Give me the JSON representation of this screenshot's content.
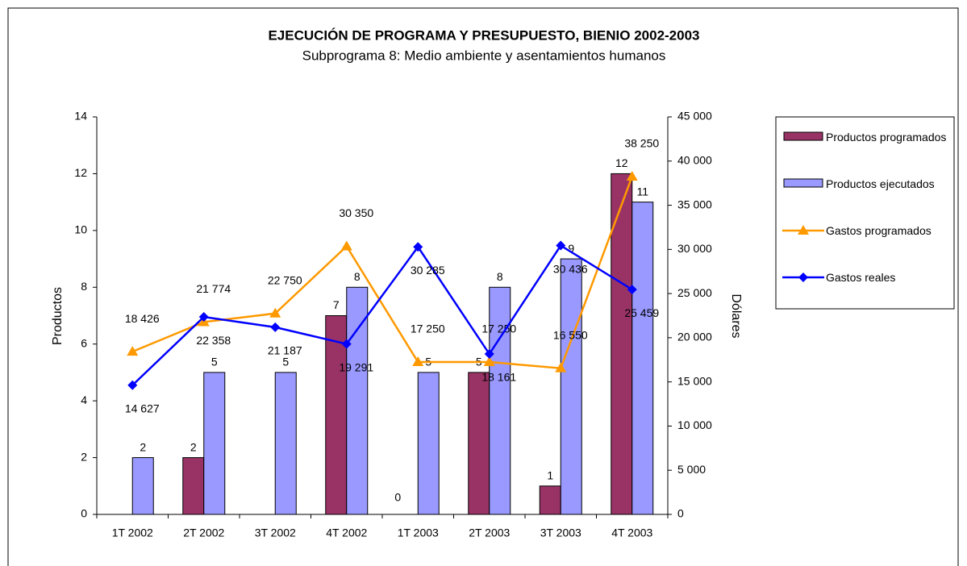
{
  "chart_data": {
    "type": "bar-line",
    "title": "EJECUCIÓN DE PROGRAMA Y PRESUPUESTO, BIENIO 2002-2003",
    "subtitle": "Subprograma 8: Medio ambiente y asentamientos humanos",
    "ylabel": "Productos",
    "y2label": "Dólares",
    "categories": [
      "1T 2002",
      "2T 2002",
      "3T 2002",
      "4T 2002",
      "1T 2003",
      "2T 2003",
      "3T 2003",
      "4T 2003"
    ],
    "series": [
      {
        "name": "Productos programados",
        "color": "#993366",
        "kind": "bar",
        "values": [
          null,
          2,
          null,
          7,
          0,
          5,
          1,
          12
        ]
      },
      {
        "name": "Productos ejecutados",
        "color": "#9999FF",
        "kind": "bar",
        "values": [
          2,
          5,
          5,
          8,
          5,
          8,
          9,
          11
        ]
      },
      {
        "name": "Gastos programados",
        "color": "#FF9900",
        "kind": "line",
        "marker": "triangle",
        "axis": "y2",
        "values": [
          18426,
          21774,
          22750,
          30350,
          17250,
          17250,
          16550,
          38250
        ],
        "value_labels": [
          "18 426",
          "21 774",
          "22 750",
          "30 350",
          "17 250",
          "17 250",
          "16 550",
          "38 250"
        ]
      },
      {
        "name": "Gastos reales",
        "color": "#0000FF",
        "kind": "line",
        "marker": "diamond",
        "axis": "y2",
        "values": [
          14627,
          22358,
          21187,
          19291,
          30285,
          18161,
          30436,
          25459
        ],
        "value_labels": [
          "14 627",
          "22 358",
          "21 187",
          "19 291",
          "30 285",
          "18 161",
          "30 436",
          "25 459"
        ]
      }
    ],
    "ylim": [
      0,
      14
    ],
    "yticks": [
      0,
      2,
      4,
      6,
      8,
      10,
      12,
      14
    ],
    "y2lim": [
      0,
      45000
    ],
    "y2ticks": [
      0,
      {
        "value": 5000,
        "label": "5 000"
      },
      {
        "value": 10000,
        "label": "10 000"
      },
      {
        "value": 15000,
        "label": "15 000"
      },
      {
        "value": 20000,
        "label": "20 000"
      },
      {
        "value": 25000,
        "label": "25 000"
      },
      {
        "value": 30000,
        "label": "30 000"
      },
      {
        "value": 35000,
        "label": "35 000"
      },
      {
        "value": 40000,
        "label": "40 000"
      },
      {
        "value": 45000,
        "label": "45 000"
      }
    ],
    "legend": "right",
    "grid": false
  }
}
